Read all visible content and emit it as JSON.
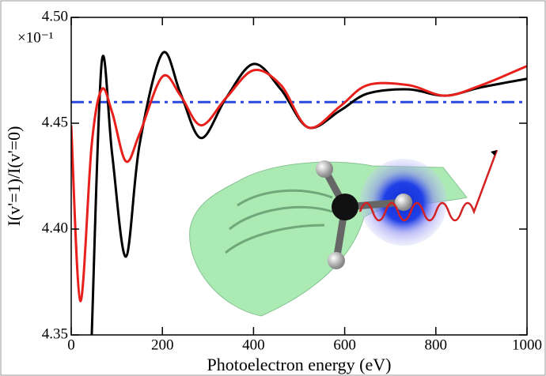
{
  "chart_data": {
    "type": "line",
    "x_label": "Photoelectron energy (eV)",
    "y_label": "I(v'=1)/I(v'=0)",
    "y_multiplier": "×10⁻¹",
    "x": [
      0,
      20,
      45,
      67,
      90,
      120,
      150,
      200,
      240,
      285,
      340,
      400,
      460,
      520,
      590,
      650,
      740,
      820,
      900,
      1000
    ],
    "series": [
      {
        "color": "#000000",
        "values": [
          null,
          null,
          4.35,
          4.479,
          4.435,
          4.387,
          4.44,
          4.483,
          4.464,
          4.443,
          4.462,
          4.478,
          4.466,
          4.448,
          4.456,
          4.464,
          4.466,
          4.463,
          4.467,
          4.471
        ]
      },
      {
        "color": "#e8201c",
        "values": [
          4.449,
          4.366,
          4.44,
          4.466,
          4.455,
          4.432,
          4.445,
          4.472,
          4.463,
          4.449,
          4.462,
          4.475,
          4.468,
          4.448,
          4.458,
          4.468,
          4.468,
          4.463,
          4.468,
          4.477
        ]
      }
    ],
    "reference_line": {
      "value": 4.46,
      "color": "#2a48e0"
    },
    "xlim": [
      0,
      1000
    ],
    "xticks": [
      0,
      200,
      400,
      600,
      800,
      1000
    ],
    "ylim": [
      4.35,
      4.5
    ],
    "yticks": [
      4.35,
      {
        "value": 4.4,
        "label": "4.40"
      },
      4.45,
      {
        "value": 4.5,
        "label": "4.50"
      }
    ]
  }
}
